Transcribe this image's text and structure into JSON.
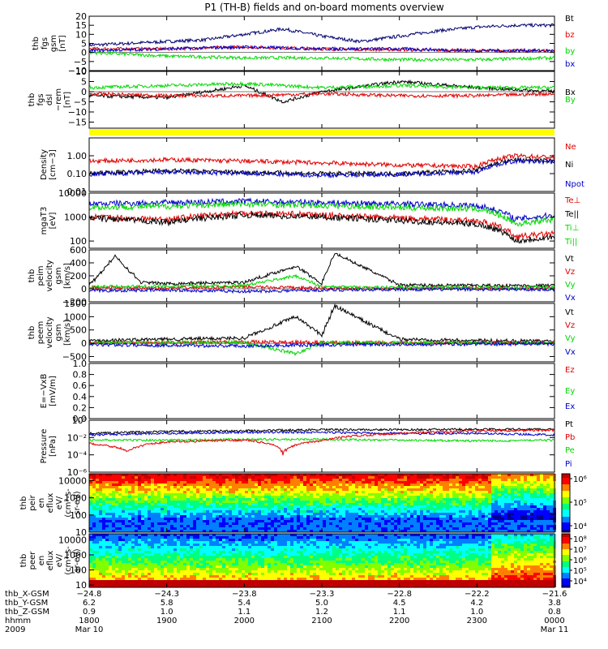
{
  "title": "P1 (TH-B) fields and on-board moments overview",
  "colors": {
    "black": "#000000",
    "red": "#e00000",
    "green": "#00d800",
    "blue": "#0000c8",
    "navy": "#000070",
    "yellow": "#ffff00"
  },
  "chart_data": [
    {
      "type": "line",
      "panel": "fgs-gsm",
      "ylabel_lines": [
        "thb",
        "fgs",
        "gsm",
        "[nT]"
      ],
      "ylim": [
        -10,
        20
      ],
      "yticks": [
        "20",
        "15",
        "10",
        "5",
        "0",
        "−5",
        "−10"
      ],
      "ytick_values": [
        20,
        15,
        10,
        5,
        0,
        -5,
        -10
      ],
      "legend": [
        "Bt",
        "bz",
        "by",
        "bx"
      ],
      "legend_colors": [
        "#000000",
        "#e00000",
        "#00d800",
        "#0000c8"
      ],
      "series": [
        {
          "name": "Bt",
          "color": "#000070",
          "x": [
            1800,
            1830,
            1900,
            1930,
            2000,
            2030,
            2100,
            2130,
            2200,
            2230,
            2300,
            2330,
            2400
          ],
          "values": [
            4,
            5,
            6,
            7,
            10,
            13,
            9,
            6,
            9,
            12,
            14,
            15,
            15
          ]
        },
        {
          "name": "bz",
          "color": "#e00000",
          "x": [
            1800,
            1900,
            2000,
            2100,
            2200,
            2300,
            2400
          ],
          "values": [
            2,
            2,
            3,
            2,
            1.5,
            1,
            1
          ]
        },
        {
          "name": "by",
          "color": "#00d800",
          "x": [
            1800,
            1900,
            2000,
            2100,
            2200,
            2300,
            2400
          ],
          "values": [
            0,
            -2,
            -3,
            -3,
            -4,
            -4,
            -3
          ]
        },
        {
          "name": "bx",
          "color": "#0000c8",
          "x": [
            1800,
            1900,
            2000,
            2100,
            2200,
            2300,
            2400
          ],
          "values": [
            1,
            2,
            3,
            2,
            2,
            1,
            1
          ]
        }
      ]
    },
    {
      "type": "line",
      "panel": "fgs-dsl",
      "ylabel_lines": [
        "thb",
        "fgs",
        "dsl",
        "−rem",
        "[nT]"
      ],
      "ylim": [
        -18,
        10
      ],
      "yticks": [
        "10",
        "5",
        "0",
        "−5",
        "−10",
        "−15"
      ],
      "ytick_values": [
        10,
        5,
        0,
        -5,
        -10,
        -15
      ],
      "legend": [
        "Bx",
        "By",
        "Bz"
      ],
      "legend_colors": [
        "#000000",
        "#00d800",
        "#e00000"
      ],
      "series": [
        {
          "name": "Bx",
          "color": "#000000",
          "x": [
            1800,
            1900,
            2000,
            2030,
            2100,
            2200,
            2300,
            2400
          ],
          "values": [
            -2,
            -3,
            3,
            -5,
            0,
            5,
            2,
            0
          ]
        },
        {
          "name": "By",
          "color": "#00d800",
          "x": [
            1800,
            1900,
            2000,
            2100,
            2200,
            2300,
            2400
          ],
          "values": [
            2,
            3,
            4,
            2,
            3,
            2,
            2
          ]
        },
        {
          "name": "Bz",
          "color": "#e00000",
          "x": [
            1800,
            1900,
            2000,
            2100,
            2200,
            2300,
            2400
          ],
          "values": [
            -1,
            -2,
            -2,
            -1,
            -2,
            -2,
            -1
          ]
        }
      ]
    },
    {
      "type": "line",
      "panel": "density",
      "ylabel_lines": [
        "Density",
        "[cm−3]"
      ],
      "yscale": "log",
      "ylim": [
        0.01,
        10
      ],
      "yticks": [
        "1.00",
        "0.10",
        "0.01"
      ],
      "ytick_values": [
        1,
        0.1,
        0.01
      ],
      "legend": [
        "Ne",
        "Ni",
        "Npot"
      ],
      "legend_colors": [
        "#e00000",
        "#000000",
        "#0000c8"
      ],
      "series": [
        {
          "name": "Ne",
          "color": "#e00000",
          "x": [
            1800,
            1900,
            2000,
            2100,
            2200,
            2300,
            2330,
            2400
          ],
          "values": [
            0.5,
            0.6,
            0.5,
            0.4,
            0.3,
            0.25,
            1.0,
            0.8
          ]
        },
        {
          "name": "Ni",
          "color": "#000000",
          "x": [
            1800,
            1900,
            2000,
            2100,
            2200,
            2300,
            2330,
            2400
          ],
          "values": [
            0.1,
            0.15,
            0.12,
            0.1,
            0.1,
            0.15,
            0.6,
            0.5
          ]
        },
        {
          "name": "Npot",
          "color": "#0000c8",
          "x": [
            1800,
            1900,
            2000,
            2100,
            2200,
            2300,
            2330,
            2400
          ],
          "values": [
            0.09,
            0.12,
            0.1,
            0.08,
            0.09,
            0.12,
            0.5,
            0.45
          ]
        }
      ]
    },
    {
      "type": "line",
      "panel": "temperature",
      "ylabel_lines": [
        "mgaT3",
        "[eV]"
      ],
      "yscale": "log",
      "ylim": [
        50,
        10000
      ],
      "yticks": [
        "10000",
        "1000",
        "100"
      ],
      "ytick_values": [
        10000,
        1000,
        100
      ],
      "legend": [
        "Te⊥",
        "Te||",
        "Ti⊥",
        "Ti||"
      ],
      "legend_colors": [
        "#e00000",
        "#000000",
        "#00d800",
        "#00d800"
      ],
      "series": [
        {
          "name": "Ti",
          "color": "#0000c8",
          "x": [
            1800,
            1900,
            2000,
            2100,
            2200,
            2300,
            2330,
            2400
          ],
          "values": [
            3500,
            4000,
            4500,
            4000,
            3500,
            3000,
            800,
            1200
          ]
        },
        {
          "name": "Ti||",
          "color": "#00d800",
          "x": [
            1800,
            1900,
            2000,
            2100,
            2200,
            2300,
            2330,
            2400
          ],
          "values": [
            2500,
            2800,
            3500,
            3000,
            2500,
            2200,
            500,
            800
          ]
        },
        {
          "name": "Te⊥",
          "color": "#e00000",
          "x": [
            1800,
            1900,
            2000,
            2100,
            2200,
            2300,
            2330,
            2400
          ],
          "values": [
            1000,
            800,
            1500,
            1200,
            900,
            700,
            150,
            200
          ]
        },
        {
          "name": "Te||",
          "color": "#000000",
          "x": [
            1800,
            1900,
            2000,
            2100,
            2200,
            2300,
            2330,
            2400
          ],
          "values": [
            900,
            600,
            1200,
            1000,
            700,
            500,
            100,
            150
          ]
        }
      ]
    },
    {
      "type": "line",
      "panel": "peim-velocity",
      "ylabel_lines": [
        "thb",
        "peim",
        "velocity",
        "gsm",
        "[km/s]"
      ],
      "ylim": [
        -200,
        600
      ],
      "yticks": [
        "600",
        "400",
        "200",
        "0",
        "−200"
      ],
      "ytick_values": [
        600,
        400,
        200,
        0,
        -200
      ],
      "legend": [
        "Vt",
        "Vz",
        "Vy",
        "Vx"
      ],
      "legend_colors": [
        "#000000",
        "#e00000",
        "#00d800",
        "#0000c8"
      ],
      "series": [
        {
          "name": "Vt",
          "color": "#000000",
          "x": [
            1800,
            1820,
            1840,
            1900,
            2000,
            2040,
            2100,
            2110,
            2200,
            2300,
            2400
          ],
          "values": [
            50,
            500,
            100,
            80,
            100,
            350,
            80,
            550,
            60,
            50,
            50
          ]
        },
        {
          "name": "Vz",
          "color": "#e00000",
          "x": [
            1800,
            1900,
            2000,
            2100,
            2200,
            2300,
            2400
          ],
          "values": [
            20,
            10,
            30,
            10,
            10,
            10,
            10
          ]
        },
        {
          "name": "Vy",
          "color": "#00d800",
          "x": [
            1800,
            1900,
            2000,
            2040,
            2100,
            2200,
            2300,
            2400
          ],
          "values": [
            30,
            40,
            50,
            200,
            30,
            20,
            20,
            20
          ]
        },
        {
          "name": "Vx",
          "color": "#0000c8",
          "x": [
            1800,
            1900,
            2000,
            2100,
            2200,
            2300,
            2400
          ],
          "values": [
            -30,
            -20,
            -40,
            -20,
            -10,
            -10,
            -10
          ]
        }
      ]
    },
    {
      "type": "line",
      "panel": "peem-velocity",
      "ylabel_lines": [
        "thb",
        "peem",
        "velocity",
        "gsm",
        "[km/s]"
      ],
      "ylim": [
        -700,
        1500
      ],
      "yticks": [
        "1500",
        "1000",
        "500",
        "0",
        "−500"
      ],
      "ytick_values": [
        1500,
        1000,
        500,
        0,
        -500
      ],
      "legend": [
        "Vt",
        "Vz",
        "Vy",
        "Vx"
      ],
      "legend_colors": [
        "#000000",
        "#e00000",
        "#00d800",
        "#0000c8"
      ],
      "series": [
        {
          "name": "Vt",
          "color": "#000000",
          "x": [
            1800,
            1900,
            2000,
            2040,
            2100,
            2110,
            2200,
            2300,
            2400
          ],
          "values": [
            100,
            150,
            200,
            1000,
            300,
            1400,
            150,
            100,
            80
          ]
        },
        {
          "name": "Vz",
          "color": "#e00000",
          "x": [
            1800,
            1900,
            2000,
            2100,
            2200,
            2300,
            2400
          ],
          "values": [
            30,
            20,
            50,
            30,
            20,
            20,
            20
          ]
        },
        {
          "name": "Vy",
          "color": "#00d800",
          "x": [
            1800,
            1900,
            2000,
            2040,
            2100,
            2200,
            2300,
            2400
          ],
          "values": [
            20,
            20,
            30,
            -400,
            20,
            20,
            10,
            10
          ]
        },
        {
          "name": "Vx",
          "color": "#0000c8",
          "x": [
            1800,
            1900,
            2000,
            2100,
            2200,
            2300,
            2400
          ],
          "values": [
            -50,
            -80,
            -100,
            -60,
            -40,
            -30,
            -20
          ]
        }
      ]
    },
    {
      "type": "line",
      "panel": "efield",
      "ylabel_lines": [
        "E=−VxB",
        "[mV/m]"
      ],
      "ylim": [
        0,
        1.0
      ],
      "yticks": [
        "1.0",
        "0.8",
        "0.6",
        "0.4",
        "0.2",
        "0.0"
      ],
      "ytick_values": [
        1.0,
        0.8,
        0.6,
        0.4,
        0.2,
        0.0
      ],
      "legend": [
        "Ez",
        "Ey",
        "Ex"
      ],
      "legend_colors": [
        "#e00000",
        "#00d800",
        "#0000c8"
      ],
      "series": []
    },
    {
      "type": "line",
      "panel": "pressure",
      "ylabel_lines": [
        "Pressure",
        "[nPa]"
      ],
      "yscale": "log",
      "ylim": [
        1e-06,
        1
      ],
      "yticks": [
        "10⁰",
        "10⁻²",
        "10⁻⁴",
        "10⁻⁶"
      ],
      "ytick_values": [
        1,
        0.01,
        0.0001,
        1e-06
      ],
      "legend": [
        "Pt",
        "Pb",
        "Pe",
        "Pi"
      ],
      "legend_colors": [
        "#000000",
        "#e00000",
        "#00d800",
        "#0000c8"
      ],
      "series": [
        {
          "name": "Pt",
          "color": "#000000",
          "x": [
            1800,
            1900,
            2000,
            2100,
            2200,
            2300,
            2400
          ],
          "values": [
            0.03,
            0.05,
            0.06,
            0.08,
            0.08,
            0.09,
            0.09
          ]
        },
        {
          "name": "Pi",
          "color": "#0000c8",
          "x": [
            1800,
            1900,
            2000,
            2100,
            2200,
            2300,
            2400
          ],
          "values": [
            0.02,
            0.03,
            0.04,
            0.04,
            0.03,
            0.03,
            0.02
          ]
        },
        {
          "name": "Pe",
          "color": "#00d800",
          "x": [
            1800,
            1900,
            2000,
            2100,
            2200,
            2300,
            2400
          ],
          "values": [
            0.005,
            0.005,
            0.006,
            0.006,
            0.005,
            0.004,
            0.005
          ]
        },
        {
          "name": "Pb",
          "color": "#e00000",
          "x": [
            1800,
            1830,
            1900,
            2000,
            2030,
            2100,
            2200,
            2300,
            2400
          ],
          "values": [
            0.002,
            0.0002,
            0.003,
            0.005,
            0.0001,
            0.004,
            0.03,
            0.06,
            0.07
          ]
        }
      ]
    },
    {
      "type": "heatmap",
      "panel": "peir-spectrogram",
      "ylabel_lines": [
        "thb",
        "peir",
        "en",
        "eflux",
        "eV/",
        "(cm²-s-",
        "sr-eV)"
      ],
      "yscale": "log",
      "ylim": [
        10,
        25000
      ],
      "yticks": [
        "10000",
        "1000",
        "100",
        "10"
      ],
      "ytick_values": [
        10000,
        1000,
        100,
        10
      ],
      "colorbar_ticks": [
        "10⁶",
        "10⁵",
        "10⁴"
      ],
      "colorbar_values": [
        1000000,
        100000,
        10000
      ]
    },
    {
      "type": "heatmap",
      "panel": "peer-spectrogram",
      "ylabel_lines": [
        "thb",
        "peer",
        "en",
        "eflux",
        "eV/",
        "(cm²-s-",
        "sr-eV)"
      ],
      "yscale": "log",
      "ylim": [
        7,
        25000
      ],
      "yticks": [
        "10000",
        "1000",
        "100",
        "10"
      ],
      "ytick_values": [
        10000,
        1000,
        100,
        10
      ],
      "colorbar_ticks": [
        "10⁸",
        "10⁷",
        "10⁶",
        "10⁵",
        "10⁴"
      ],
      "colorbar_values": [
        100000000,
        10000000,
        1000000,
        100000,
        10000
      ]
    }
  ],
  "xaxis": {
    "tick_values": [
      1800,
      1900,
      2000,
      2100,
      2200,
      2300,
      2400
    ],
    "rows": [
      {
        "label": "thb_X-GSM",
        "values": [
          "−24.8",
          "−24.3",
          "−23.8",
          "−23.3",
          "−22.8",
          "−22.2",
          "−21.6"
        ]
      },
      {
        "label": "thb_Y-GSM",
        "values": [
          "6.2",
          "5.8",
          "5.4",
          "5.0",
          "4.5",
          "4.2",
          "3.8"
        ]
      },
      {
        "label": "thb_Z-GSM",
        "values": [
          "0.9",
          "1.0",
          "1.1",
          "1.2",
          "1.1",
          "1.0",
          "0.8"
        ]
      },
      {
        "label": "hhmm",
        "values": [
          "1800",
          "1900",
          "2000",
          "2100",
          "2200",
          "2300",
          "0000"
        ]
      }
    ],
    "date_row": {
      "label": "2009",
      "start": "Mar 10",
      "end": "Mar 11"
    }
  }
}
